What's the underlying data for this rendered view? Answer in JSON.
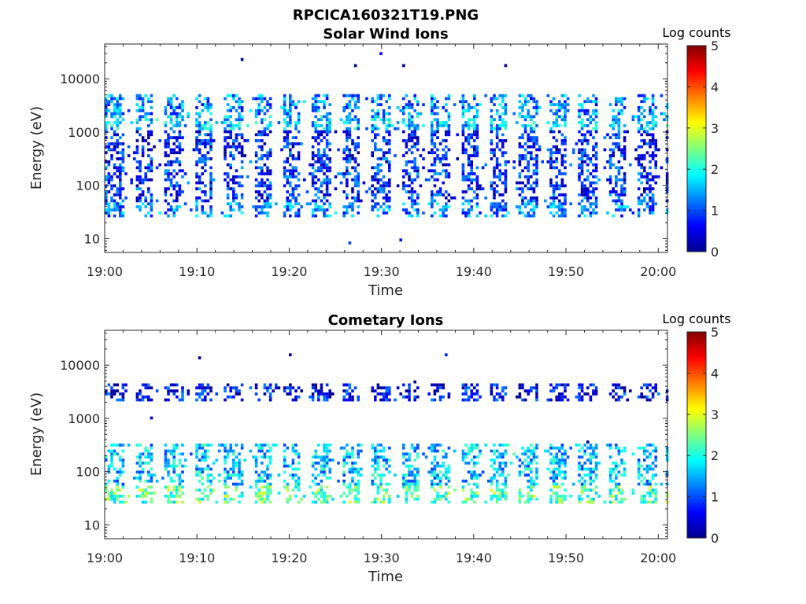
{
  "figure": {
    "title": "RPCICA160321T19.PNG"
  },
  "chart_data": [
    {
      "type": "heatmap",
      "title": "Solar Wind Ions",
      "xlabel": "Time",
      "ylabel": "Energy (eV)",
      "x_ticks": [
        "19:00",
        "19:10",
        "19:20",
        "19:30",
        "19:40",
        "19:50",
        "20:00"
      ],
      "x_range_minutes": [
        0,
        61
      ],
      "y_scale": "log",
      "y_range": [
        5.5,
        45000
      ],
      "y_ticks": [
        10,
        100,
        1000,
        10000
      ],
      "y_tick_labels": [
        "10",
        "100",
        "1000",
        "10000"
      ],
      "colorbar": {
        "label": "Log counts",
        "range": [
          0,
          5
        ],
        "ticks": [
          "0",
          "1",
          "2",
          "3",
          "4",
          "5"
        ],
        "colormap": "jet"
      },
      "sweep_period_minutes": 3.2,
      "bands": [
        {
          "energy_range_eV": [
            25,
            45
          ],
          "log_counts": 1.3
        },
        {
          "energy_range_eV": [
            45,
            300
          ],
          "log_counts": 0.8
        },
        {
          "energy_range_eV": [
            300,
            1000
          ],
          "log_counts": 0.7
        },
        {
          "energy_range_eV": [
            1000,
            2000
          ],
          "log_counts": 1.6
        },
        {
          "energy_range_eV": [
            2000,
            5000
          ],
          "log_counts": 1.3
        }
      ]
    },
    {
      "type": "heatmap",
      "title": "Cometary Ions",
      "xlabel": "Time",
      "ylabel": "Energy (eV)",
      "x_ticks": [
        "19:00",
        "19:10",
        "19:20",
        "19:30",
        "19:40",
        "19:50",
        "20:00"
      ],
      "x_range_minutes": [
        0,
        61
      ],
      "y_scale": "log",
      "y_range": [
        5.5,
        45000
      ],
      "y_ticks": [
        10,
        100,
        1000,
        10000
      ],
      "y_tick_labels": [
        "10",
        "100",
        "1000",
        "10000"
      ],
      "colorbar": {
        "label": "Log counts",
        "range": [
          0,
          5
        ],
        "ticks": [
          "0",
          "1",
          "2",
          "3",
          "4",
          "5"
        ],
        "colormap": "jet"
      },
      "sweep_period_minutes": 3.2,
      "bands": [
        {
          "energy_range_eV": [
            25,
            50
          ],
          "log_counts": 2.3
        },
        {
          "energy_range_eV": [
            50,
            300
          ],
          "log_counts": 1.6
        },
        {
          "energy_range_eV": [
            2000,
            4000
          ],
          "log_counts": 0.6
        }
      ]
    }
  ]
}
